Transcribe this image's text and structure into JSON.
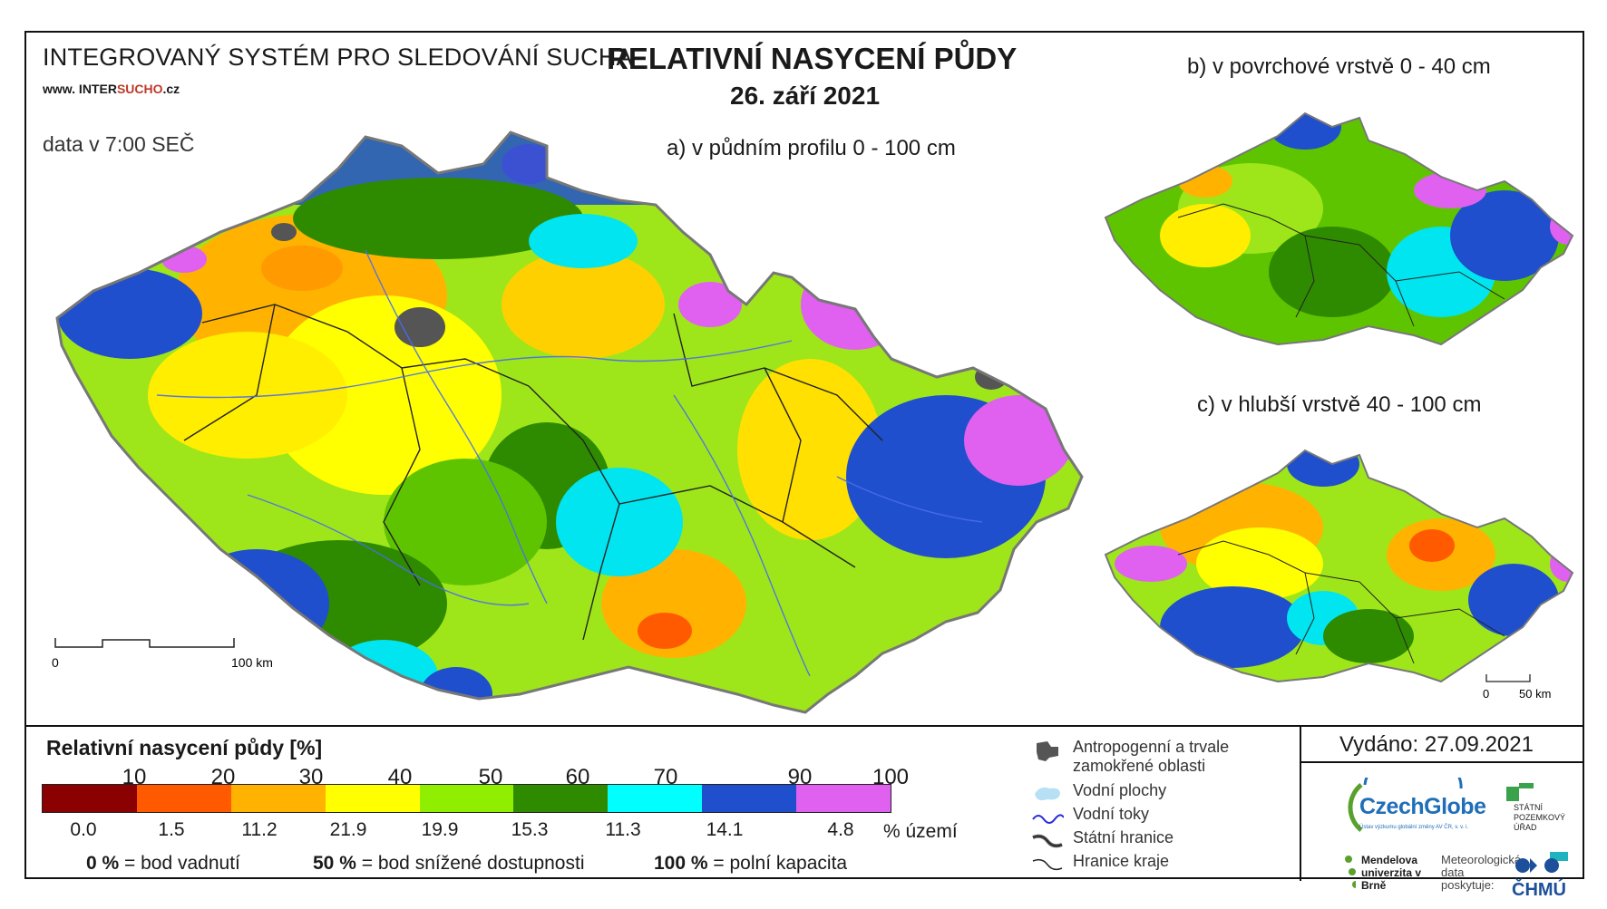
{
  "header": {
    "system_title": "INTEGROVANÝ SYSTÉM PRO SLEDOVÁNÍ SUCHA",
    "website_prefix": "www. INTER",
    "website_accent": "SUCHO",
    "website_suffix": ".cz",
    "data_time": "data v 7:00 SEČ",
    "main_title": "RELATIVNÍ NASYCENÍ PŮDY",
    "date": "26. září 2021"
  },
  "maps": {
    "a_label": "a) v půdním profilu 0 - 100 cm",
    "b_label": "b) v povrchové vrstvě 0 - 40 cm",
    "c_label": "c) v hlubší vrstvě 40 - 100 cm",
    "scale_main_0": "0",
    "scale_main_100": "100 km",
    "scale_small_0": "0",
    "scale_small_50": "50 km"
  },
  "legend": {
    "title": "Relativní nasycení půdy [%]",
    "ticks": [
      "10",
      "20",
      "30",
      "40",
      "50",
      "60",
      "70",
      "90",
      "100"
    ],
    "colors": [
      "#8b0000",
      "#ff5a00",
      "#ffb300",
      "#ffff00",
      "#90ee00",
      "#2e8b00",
      "#00ffff",
      "#1f4fcc",
      "#e060f0"
    ],
    "percentages": [
      "0.0",
      "1.5",
      "11.2",
      "21.9",
      "19.9",
      "15.3",
      "11.3",
      "14.1",
      "4.8"
    ],
    "pct_unit": "% území",
    "def_0_val": "0 %",
    "def_0_txt": "= bod vadnutí",
    "def_50_val": "50 %",
    "def_50_txt": "= bod snížené dostupnosti",
    "def_100_val": "100 %",
    "def_100_txt": "= polní kapacita"
  },
  "symbols": {
    "anthropogenic": "Antropogenní a trvale zamokřené oblasti",
    "water_bodies": "Vodní plochy",
    "streams": "Vodní toky",
    "state_border": "Státní hranice",
    "region_border": "Hranice kraje"
  },
  "footer": {
    "issued": "Vydáno: 27.09.2021",
    "czechglobe": "CzechGlobe",
    "czechglobe_sub": "Ústav výzkumu globální změny AV ČR, v. v. i.",
    "spu": "STÁTNÍ POZEMKOVÝ ÚŘAD",
    "mendel": "Mendelova univerzita v Brně",
    "meteo": "Meteorologická data poskytuje:",
    "chmu": "ČHMÚ"
  }
}
